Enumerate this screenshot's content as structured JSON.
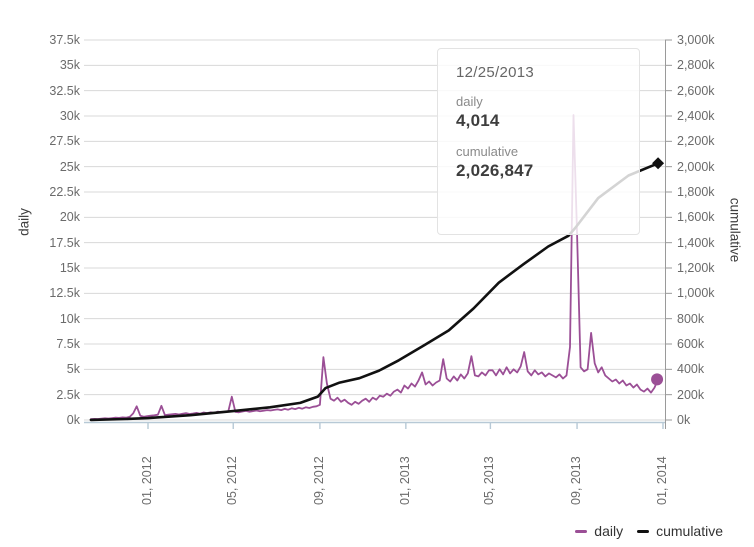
{
  "tooltip": {
    "date": "12/25/2013",
    "rows": [
      {
        "label": "daily",
        "value": "4,014"
      },
      {
        "label": "cumulative",
        "value": "2,026,847"
      }
    ]
  },
  "legend": {
    "items": [
      {
        "label": "daily",
        "color": "#9b4f96"
      },
      {
        "label": "cumulative",
        "color": "#111111"
      }
    ]
  },
  "axes": {
    "left_title": "daily",
    "right_title": "cumulative",
    "left_ticks_top_to_bottom": [
      "37.5k",
      "35k",
      "32.5k",
      "30k",
      "27.5k",
      "25k",
      "22.5k",
      "20k",
      "17.5k",
      "15k",
      "12.5k",
      "10k",
      "7.5k",
      "5k",
      "2.5k",
      "0k"
    ],
    "right_ticks_top_to_bottom": [
      "3,000k",
      "2,800k",
      "2,600k",
      "2,400k",
      "2,200k",
      "2,000k",
      "1,800k",
      "1,600k",
      "1,400k",
      "1,200k",
      "1,000k",
      "800k",
      "600k",
      "400k",
      "200k",
      "0k"
    ],
    "x_ticks": [
      {
        "label": "01, 2012",
        "date": "2012-01-01"
      },
      {
        "label": "05, 2012",
        "date": "2012-05-01"
      },
      {
        "label": "09, 2012",
        "date": "2012-09-01"
      },
      {
        "label": "01, 2013",
        "date": "2013-01-01"
      },
      {
        "label": "05, 2013",
        "date": "2013-05-01"
      },
      {
        "label": "09, 2013",
        "date": "2013-09-01"
      },
      {
        "label": "01, 2014",
        "date": "2014-01-01"
      }
    ]
  },
  "colors": {
    "daily_line": "#9b4f96",
    "cumulative_line": "#111111",
    "gridline": "#d8d8d8",
    "x_axis_line": "#b7c9d6",
    "right_axis_line": "#9a9a9a",
    "tick_text": "#6b6b6b"
  },
  "chart_data": {
    "type": "line",
    "title": "",
    "xlabel": "",
    "ylabel_left": "daily",
    "ylabel_right": "cumulative",
    "ylim_left": [
      0,
      37500
    ],
    "ylim_right": [
      0,
      3000000
    ],
    "x_range": [
      "2011-10-12",
      "2013-12-25"
    ],
    "grid": true,
    "legend_position": "bottom-right",
    "hover_point": {
      "date": "2013-12-25",
      "daily": 4014,
      "cumulative": 2026847
    },
    "series": [
      {
        "name": "daily",
        "axis": "left",
        "color": "#9b4f96",
        "sampling": {
          "start": "2011-10-12",
          "step_days": 5
        },
        "values": [
          90,
          110,
          100,
          140,
          170,
          150,
          190,
          230,
          210,
          260,
          240,
          310,
          650,
          1350,
          420,
          330,
          380,
          420,
          460,
          520,
          1400,
          480,
          520,
          560,
          600,
          540,
          620,
          680,
          590,
          640,
          700,
          620,
          740,
          680,
          760,
          700,
          820,
          760,
          800,
          860,
          2300,
          800,
          760,
          840,
          900,
          820,
          880,
          940,
          860,
          920,
          980,
          940,
          1000,
          1050,
          980,
          1100,
          1020,
          1150,
          1080,
          1200,
          1120,
          1250,
          1180,
          1300,
          1350,
          1500,
          6200,
          3600,
          2100,
          1900,
          2200,
          1800,
          2000,
          1700,
          1500,
          1800,
          1600,
          1900,
          2100,
          1800,
          2200,
          2000,
          2400,
          2300,
          2600,
          2400,
          2800,
          3000,
          2700,
          3400,
          3100,
          3600,
          3300,
          3900,
          4700,
          3500,
          3800,
          3400,
          3700,
          3900,
          6000,
          4100,
          3800,
          4300,
          3900,
          4500,
          4100,
          4600,
          6300,
          4400,
          4300,
          4700,
          4400,
          4900,
          4900,
          4400,
          5000,
          4500,
          5200,
          4600,
          5000,
          4700,
          5300,
          6700,
          4800,
          4400,
          4900,
          4500,
          4700,
          4300,
          4600,
          4400,
          4200,
          4500,
          4100,
          4400,
          7200,
          30100,
          18600,
          5200,
          4800,
          5000,
          8600,
          5600,
          4700,
          5200,
          4400,
          4100,
          3800,
          4000,
          3600,
          3900,
          3400,
          3600,
          3200,
          3500,
          3000,
          2800,
          3100,
          2700,
          3200,
          4014
        ]
      },
      {
        "name": "cumulative",
        "axis": "right",
        "color": "#111111",
        "points": [
          [
            "2011-10-12",
            1000
          ],
          [
            "2011-12-01",
            8000
          ],
          [
            "2012-01-01",
            15000
          ],
          [
            "2012-03-01",
            38000
          ],
          [
            "2012-05-01",
            70000
          ],
          [
            "2012-06-22",
            100000
          ],
          [
            "2012-08-04",
            135000
          ],
          [
            "2012-08-29",
            185000
          ],
          [
            "2012-09-09",
            252000
          ],
          [
            "2012-09-29",
            295000
          ],
          [
            "2012-10-27",
            330000
          ],
          [
            "2012-11-24",
            390000
          ],
          [
            "2012-12-22",
            471000
          ],
          [
            "2013-01-27",
            590000
          ],
          [
            "2013-03-03",
            707000
          ],
          [
            "2013-04-07",
            880000
          ],
          [
            "2013-05-13",
            1084000
          ],
          [
            "2013-06-17",
            1230000
          ],
          [
            "2013-07-22",
            1370000
          ],
          [
            "2013-08-20",
            1455000
          ],
          [
            "2013-08-30",
            1520000
          ],
          [
            "2013-10-01",
            1752000
          ],
          [
            "2013-11-13",
            1930000
          ],
          [
            "2013-12-25",
            2026847
          ]
        ]
      }
    ]
  }
}
